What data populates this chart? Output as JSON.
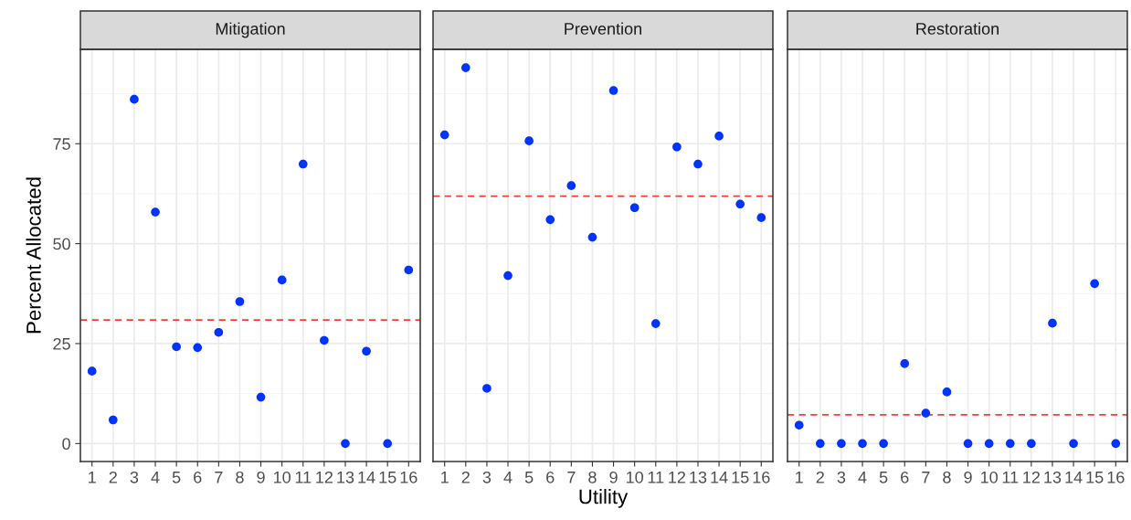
{
  "chart_data": [
    {
      "type": "scatter",
      "title": "Mitigation",
      "ylabel": "Percent Allocated",
      "categories": [
        "1",
        "2",
        "3",
        "4",
        "5",
        "6",
        "7",
        "8",
        "9",
        "10",
        "11",
        "12",
        "13",
        "14",
        "15",
        "16"
      ],
      "series": [
        {
          "color": "#0033ff",
          "values": [
            18.1,
            5.9,
            86.1,
            57.9,
            24.2,
            24.0,
            27.8,
            35.5,
            11.6,
            40.9,
            69.9,
            25.8,
            0,
            23.1,
            0,
            43.4
          ]
        }
      ],
      "ylim": [
        -4.5,
        98.6
      ],
      "yticks": [
        0,
        25,
        50,
        75
      ],
      "grid": true,
      "marker": "circle",
      "ref_lines": [
        {
          "axis": "y",
          "value": 30.9,
          "color": "#ff3b30",
          "line_style": "dashed"
        }
      ]
    },
    {
      "type": "scatter",
      "title": "Prevention",
      "xlabel": "Utility",
      "categories": [
        "1",
        "2",
        "3",
        "4",
        "5",
        "6",
        "7",
        "8",
        "9",
        "10",
        "11",
        "12",
        "13",
        "14",
        "15",
        "16"
      ],
      "series": [
        {
          "color": "#0033ff",
          "values": [
            77.2,
            94.0,
            13.8,
            42.0,
            75.7,
            56.0,
            64.5,
            51.6,
            88.3,
            59.0,
            30.0,
            74.2,
            69.9,
            76.9,
            59.9,
            56.5
          ]
        }
      ],
      "ylim": [
        -4.5,
        98.6
      ],
      "yticks": [
        0,
        25,
        50,
        75
      ],
      "grid": true,
      "marker": "circle",
      "tick_labels": "x",
      "ref_lines": [
        {
          "axis": "y",
          "value": 61.9,
          "color": "#ff3b30",
          "line_style": "dashed"
        }
      ]
    },
    {
      "type": "scatter",
      "title": "Restoration",
      "categories": [
        "1",
        "2",
        "3",
        "4",
        "5",
        "6",
        "7",
        "8",
        "9",
        "10",
        "11",
        "12",
        "13",
        "14",
        "15",
        "16"
      ],
      "series": [
        {
          "color": "#0033ff",
          "values": [
            4.6,
            0,
            0,
            0,
            0,
            20.0,
            7.6,
            12.9,
            0,
            0,
            0,
            0,
            30.1,
            0,
            40.0,
            0
          ]
        }
      ],
      "ylim": [
        -4.5,
        98.6
      ],
      "yticks": [
        0,
        25,
        50,
        75
      ],
      "grid": true,
      "marker": "circle",
      "tick_labels": "x",
      "ref_lines": [
        {
          "axis": "y",
          "value": 7.2,
          "color": "#ff3b30",
          "line_style": "dashed"
        }
      ]
    }
  ]
}
